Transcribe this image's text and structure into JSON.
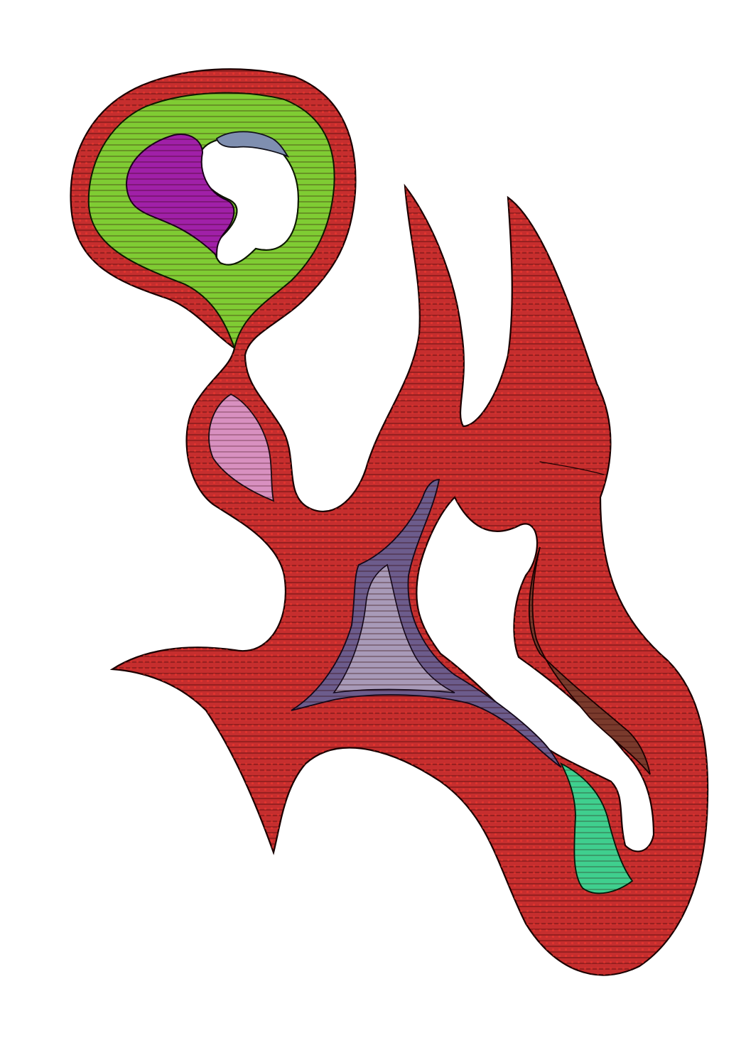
{
  "figure": {
    "background": "#ffffff",
    "stroke_color": "#1a0000",
    "node_color": "#e8211b",
    "regions": [
      {
        "id": "outer-toolpath",
        "fill": "#c62e2e"
      },
      {
        "id": "head-ring",
        "fill": "#7fcc33"
      },
      {
        "id": "head-inner-left",
        "fill": "#a020a8"
      },
      {
        "id": "head-inner-top",
        "fill": "#7f8fb0"
      },
      {
        "id": "neck-lobe",
        "fill": "#d890c0"
      },
      {
        "id": "center-core",
        "fill": "#6c5c8c"
      },
      {
        "id": "center-core-inner",
        "fill": "#a89ab8"
      },
      {
        "id": "right-arm-core",
        "fill": "#7a3a2c"
      },
      {
        "id": "lower-right-core",
        "fill": "#3fcf8e"
      }
    ]
  }
}
